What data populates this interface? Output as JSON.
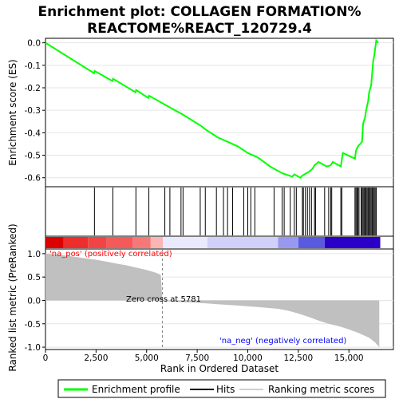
{
  "title_line1": "Enrichment plot: COLLAGEN FORMATION%",
  "title_line2": "REACTOME%REACT_120729.4",
  "colors": {
    "profile": "#00ff00",
    "hits": "#000000",
    "metric_fill": "#c0c0c0",
    "pos_label": "#ff0000",
    "neg_label": "#0000ff",
    "zero_line": "#808080"
  },
  "chart_data": [
    {
      "name": "enrichment-profile",
      "type": "line",
      "ylabel": "Enrichment score (ES)",
      "ylim": [
        -0.64,
        0.02
      ],
      "yticks": [
        "0.0",
        "-0.1",
        "-0.2",
        "-0.3",
        "-0.4",
        "-0.5",
        "-0.6"
      ],
      "ytick_values": [
        0.0,
        -0.1,
        -0.2,
        -0.3,
        -0.4,
        -0.5,
        -0.6
      ],
      "xlim": [
        0,
        17200
      ],
      "x": [
        0,
        2400,
        2430,
        3300,
        3340,
        4450,
        4480,
        5080,
        5120,
        6200,
        6800,
        7700,
        7900,
        8500,
        9500,
        10000,
        10500,
        11100,
        11700,
        12200,
        12300,
        12600,
        12700,
        12900,
        13000,
        13200,
        13300,
        13500,
        13900,
        14100,
        14200,
        14600,
        14700,
        15300,
        15350,
        15450,
        15550,
        15650,
        15700,
        15800,
        15850,
        15950,
        16000,
        16100,
        16200,
        16250,
        16350,
        16450
      ],
      "y": [
        0.0,
        -0.135,
        -0.125,
        -0.17,
        -0.16,
        -0.22,
        -0.21,
        -0.245,
        -0.235,
        -0.29,
        -0.32,
        -0.37,
        -0.385,
        -0.42,
        -0.46,
        -0.49,
        -0.51,
        -0.55,
        -0.58,
        -0.595,
        -0.585,
        -0.6,
        -0.59,
        -0.58,
        -0.575,
        -0.56,
        -0.545,
        -0.53,
        -0.55,
        -0.545,
        -0.53,
        -0.55,
        -0.49,
        -0.515,
        -0.48,
        -0.46,
        -0.45,
        -0.44,
        -0.36,
        -0.33,
        -0.3,
        -0.26,
        -0.22,
        -0.19,
        -0.08,
        -0.06,
        0.01,
        0.0
      ]
    },
    {
      "name": "hits",
      "type": "scatter",
      "x": [
        2420,
        3330,
        4470,
        5110,
        5900,
        6150,
        6700,
        6800,
        7650,
        7900,
        8450,
        8800,
        9000,
        9250,
        9800,
        10000,
        10150,
        10350,
        11300,
        11700,
        11800,
        12100,
        12300,
        12400,
        12700,
        12750,
        12850,
        12950,
        13050,
        13150,
        13300,
        13350,
        13800,
        14000,
        14100,
        14150,
        14600,
        14650,
        15300,
        15350,
        15400,
        15450,
        15500,
        15600,
        15650,
        15700,
        15750,
        15800,
        15850,
        15900,
        15950,
        16000,
        16050,
        16100,
        16150,
        16200,
        16250,
        16300,
        16350
      ]
    },
    {
      "name": "ranked-list-metric",
      "type": "area",
      "ylabel": "Ranked list metric (PreRanked)",
      "xlabel": "Rank in Ordered Dataset",
      "ylim": [
        -1.05,
        1.1
      ],
      "yticks": [
        "1.0",
        "0.5",
        "0.0",
        "-0.5",
        "-1.0"
      ],
      "ytick_values": [
        1.0,
        0.5,
        0.0,
        -0.5,
        -1.0
      ],
      "xticks": [
        "0",
        "2,500",
        "5,000",
        "7,500",
        "10,000",
        "12,500",
        "15,000"
      ],
      "xtick_values": [
        0,
        2500,
        5000,
        7500,
        10000,
        12500,
        15000
      ],
      "xlim": [
        0,
        17200
      ],
      "x": [
        0,
        500,
        1000,
        1500,
        2000,
        2500,
        3000,
        3500,
        4000,
        4500,
        5000,
        5400,
        5700,
        5781,
        5800,
        6500,
        7500,
        8500,
        9500,
        10500,
        11500,
        12000,
        12500,
        13000,
        13500,
        14000,
        14500,
        15000,
        15500,
        16000,
        16300,
        16500
      ],
      "values": [
        1.0,
        0.98,
        0.96,
        0.93,
        0.9,
        0.87,
        0.83,
        0.79,
        0.75,
        0.7,
        0.65,
        0.6,
        0.55,
        0.0,
        -0.01,
        -0.03,
        -0.05,
        -0.08,
        -0.11,
        -0.14,
        -0.18,
        -0.22,
        -0.28,
        -0.35,
        -0.43,
        -0.5,
        -0.55,
        -0.62,
        -0.7,
        -0.8,
        -0.9,
        -1.0
      ],
      "zero_cross_label": "Zero cross at 5781",
      "pos_label": "'na_pos' (positively correlated)",
      "neg_label": "'na_neg' (negatively correlated)"
    }
  ],
  "legend": {
    "items": [
      {
        "label": "Enrichment profile",
        "color": "#00ff00"
      },
      {
        "label": "Hits",
        "color": "#000000"
      },
      {
        "label": "Ranking metric scores",
        "color": "#c0c0c0"
      }
    ]
  }
}
